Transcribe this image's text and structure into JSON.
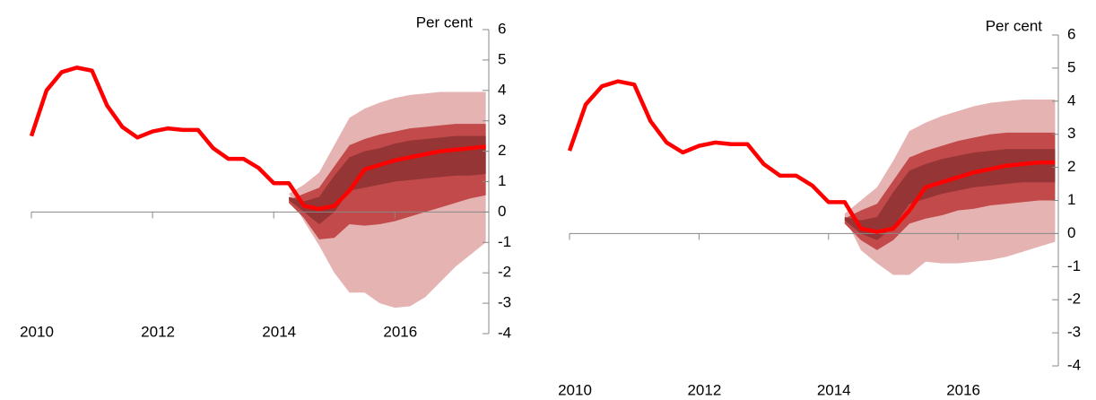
{
  "chart_data": [
    {
      "type": "fan",
      "y_label": "Per cent",
      "x": [
        2010,
        2010.25,
        2010.5,
        2010.75,
        2011,
        2011.25,
        2011.5,
        2011.75,
        2012,
        2012.25,
        2012.5,
        2012.75,
        2013,
        2013.25,
        2013.5,
        2013.75,
        2014,
        2014.25,
        2014.5,
        2014.75,
        2015,
        2015.25,
        2015.5,
        2015.75,
        2016,
        2016.25,
        2016.5,
        2016.75,
        2017,
        2017.25,
        2017.5
      ],
      "series": [
        {
          "color": "#ff0000",
          "values": [
            2.5,
            4.0,
            4.6,
            4.75,
            4.65,
            3.5,
            2.8,
            2.45,
            2.65,
            2.75,
            2.7,
            2.7,
            2.1,
            1.75,
            1.75,
            1.45,
            0.95,
            0.95,
            0.2,
            0.1,
            0.2,
            0.7,
            1.4,
            1.55,
            1.7,
            1.8,
            1.9,
            2.0,
            2.05,
            2.1,
            2.15
          ]
        }
      ],
      "band_x": [
        2014.25,
        2014.5,
        2014.75,
        2015,
        2015.25,
        2015.5,
        2015.75,
        2016,
        2016.25,
        2016.5,
        2016.75,
        2017,
        2017.25,
        2017.5
      ],
      "bands": [
        {
          "color": "#e6b3b3",
          "lower": [
            0.6,
            -0.3,
            -1.1,
            -2.0,
            -2.65,
            -2.65,
            -3.0,
            -3.15,
            -3.1,
            -2.8,
            -2.3,
            -1.8,
            -1.4,
            -1.0
          ],
          "upper": [
            0.6,
            0.9,
            1.3,
            2.2,
            3.1,
            3.4,
            3.6,
            3.75,
            3.85,
            3.9,
            3.95,
            3.95,
            3.95,
            3.95
          ]
        },
        {
          "color": "#c24a4a",
          "lower": [
            0.3,
            -0.2,
            -0.9,
            -0.85,
            -0.4,
            -0.45,
            -0.4,
            -0.3,
            -0.15,
            0.0,
            0.15,
            0.3,
            0.45,
            0.55
          ],
          "upper": [
            0.4,
            0.6,
            0.8,
            1.5,
            2.2,
            2.4,
            2.55,
            2.65,
            2.75,
            2.8,
            2.85,
            2.9,
            2.9,
            2.9
          ]
        },
        {
          "color": "#953535",
          "lower": [
            0.4,
            0.0,
            -0.4,
            0.0,
            0.7,
            0.8,
            0.9,
            1.0,
            1.05,
            1.1,
            1.15,
            1.2,
            1.2,
            1.25
          ],
          "upper": [
            0.5,
            0.35,
            0.5,
            1.2,
            1.8,
            2.0,
            2.1,
            2.25,
            2.35,
            2.4,
            2.45,
            2.5,
            2.5,
            2.5
          ]
        }
      ],
      "xlim": [
        2010,
        2017.55
      ],
      "xticks": [
        2010,
        2012,
        2014,
        2016
      ],
      "ylim": [
        -4,
        6
      ],
      "yticks": [
        -4,
        -3,
        -2,
        -1,
        0,
        1,
        2,
        3,
        4,
        5,
        6
      ]
    },
    {
      "type": "fan",
      "y_label": "Per cent",
      "x": [
        2010,
        2010.25,
        2010.5,
        2010.75,
        2011,
        2011.25,
        2011.5,
        2011.75,
        2012,
        2012.25,
        2012.5,
        2012.75,
        2013,
        2013.25,
        2013.5,
        2013.75,
        2014,
        2014.25,
        2014.5,
        2014.75,
        2015,
        2015.25,
        2015.5,
        2015.75,
        2016,
        2016.25,
        2016.5,
        2016.75,
        2017,
        2017.25,
        2017.5
      ],
      "series": [
        {
          "color": "#ff0000",
          "values": [
            2.5,
            3.9,
            4.45,
            4.6,
            4.5,
            3.4,
            2.75,
            2.45,
            2.65,
            2.75,
            2.7,
            2.7,
            2.1,
            1.75,
            1.75,
            1.45,
            0.95,
            0.95,
            0.15,
            0.05,
            0.15,
            0.7,
            1.4,
            1.55,
            1.7,
            1.85,
            1.95,
            2.05,
            2.1,
            2.15,
            2.15
          ]
        }
      ],
      "band_x": [
        2014.25,
        2014.5,
        2014.75,
        2015,
        2015.25,
        2015.5,
        2015.75,
        2016,
        2016.25,
        2016.5,
        2016.75,
        2017,
        2017.25,
        2017.5
      ],
      "bands": [
        {
          "color": "#e6b3b3",
          "lower": [
            0.5,
            -0.5,
            -0.9,
            -1.25,
            -1.25,
            -0.85,
            -0.9,
            -0.9,
            -0.85,
            -0.8,
            -0.7,
            -0.55,
            -0.4,
            -0.25
          ],
          "upper": [
            0.6,
            1.0,
            1.4,
            2.2,
            3.1,
            3.35,
            3.55,
            3.7,
            3.85,
            3.95,
            4.0,
            4.05,
            4.05,
            4.05
          ]
        },
        {
          "color": "#c24a4a",
          "lower": [
            0.3,
            -0.2,
            -0.5,
            -0.2,
            0.3,
            0.45,
            0.55,
            0.7,
            0.75,
            0.85,
            0.9,
            0.95,
            1.0,
            1.0
          ],
          "upper": [
            0.45,
            0.7,
            0.9,
            1.6,
            2.3,
            2.5,
            2.65,
            2.8,
            2.9,
            3.0,
            3.05,
            3.05,
            3.05,
            3.05
          ]
        },
        {
          "color": "#953535",
          "lower": [
            0.4,
            0.0,
            -0.2,
            0.2,
            0.9,
            1.05,
            1.2,
            1.3,
            1.4,
            1.45,
            1.5,
            1.55,
            1.55,
            1.55
          ],
          "upper": [
            0.5,
            0.4,
            0.5,
            1.25,
            1.9,
            2.1,
            2.25,
            2.35,
            2.45,
            2.5,
            2.55,
            2.55,
            2.55,
            2.55
          ]
        }
      ],
      "xlim": [
        2010,
        2017.55
      ],
      "xticks": [
        2010,
        2012,
        2014,
        2016
      ],
      "ylim": [
        -4,
        6
      ],
      "yticks": [
        -4,
        -3,
        -2,
        -1,
        0,
        1,
        2,
        3,
        4,
        5,
        6
      ]
    }
  ]
}
